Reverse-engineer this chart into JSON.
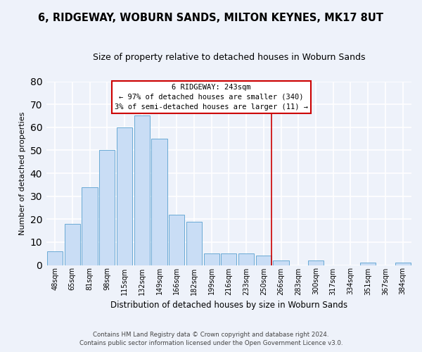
{
  "title": "6, RIDGEWAY, WOBURN SANDS, MILTON KEYNES, MK17 8UT",
  "subtitle": "Size of property relative to detached houses in Woburn Sands",
  "xlabel": "Distribution of detached houses by size in Woburn Sands",
  "ylabel": "Number of detached properties",
  "bar_labels": [
    "48sqm",
    "65sqm",
    "81sqm",
    "98sqm",
    "115sqm",
    "132sqm",
    "149sqm",
    "166sqm",
    "182sqm",
    "199sqm",
    "216sqm",
    "233sqm",
    "250sqm",
    "266sqm",
    "283sqm",
    "300sqm",
    "317sqm",
    "334sqm",
    "351sqm",
    "367sqm",
    "384sqm"
  ],
  "bar_values": [
    6,
    18,
    34,
    50,
    60,
    65,
    55,
    22,
    19,
    5,
    5,
    5,
    4,
    2,
    0,
    2,
    0,
    0,
    1,
    0,
    1
  ],
  "bar_color": "#c9ddf5",
  "bar_edge_color": "#6aaad4",
  "ylim": [
    0,
    80
  ],
  "yticks": [
    0,
    10,
    20,
    30,
    40,
    50,
    60,
    70,
    80
  ],
  "vline_x": 12.45,
  "vline_color": "#cc0000",
  "annotation_title": "6 RIDGEWAY: 243sqm",
  "annotation_line1": "← 97% of detached houses are smaller (340)",
  "annotation_line2": "3% of semi-detached houses are larger (11) →",
  "annotation_box_color": "#ffffff",
  "annotation_border_color": "#cc0000",
  "footer_line1": "Contains HM Land Registry data © Crown copyright and database right 2024.",
  "footer_line2": "Contains public sector information licensed under the Open Government Licence v3.0.",
  "bg_color": "#eef2fa",
  "grid_color": "#d0d8e8",
  "title_fontsize": 10.5,
  "subtitle_fontsize": 9
}
